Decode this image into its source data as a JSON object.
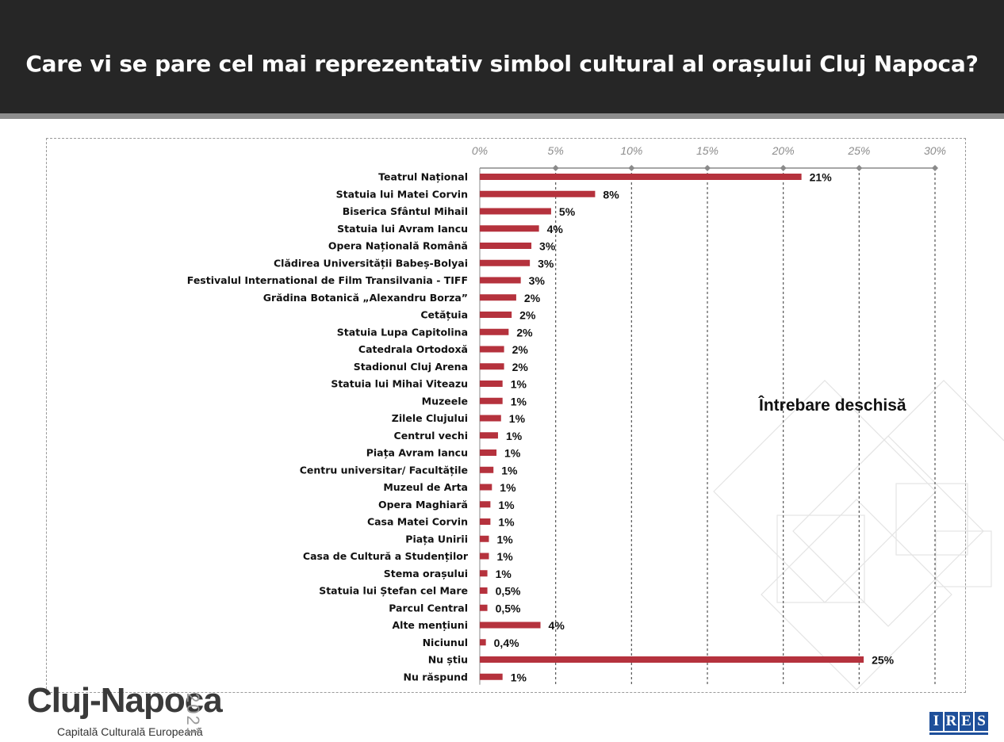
{
  "header": {
    "title": "Care vi se pare cel mai reprezentativ simbol cultural al orașului Cluj Napoca?"
  },
  "note": "Întrebare deschisă",
  "logo": {
    "name": "Cluj-Napoca",
    "subtitle": "Capitală Culturală Europeană",
    "year": "2021"
  },
  "brand": {
    "name": "IRES",
    "letters": [
      "I",
      "R",
      "E",
      "S"
    ]
  },
  "colors": {
    "bar": "#b5323d",
    "header_bg": "#262626",
    "brand": "#1e4f9a"
  },
  "chart_data": {
    "type": "bar",
    "orientation": "horizontal",
    "title": "Care vi se pare cel mai reprezentativ simbol cultural al orașului Cluj Napoca?",
    "xlim": [
      0,
      30
    ],
    "x_ticks": [
      "0%",
      "5%",
      "10%",
      "15%",
      "20%",
      "25%",
      "30%"
    ],
    "x_tick_values": [
      0,
      5,
      10,
      15,
      20,
      25,
      30
    ],
    "x_axis_position": "top",
    "grid": "vertical dashed",
    "categories": [
      "Teatrul Național",
      "Statuia lui Matei Corvin",
      "Biserica Sfântul Mihail",
      "Statuia lui Avram Iancu",
      "Opera Națională Română",
      "Clădirea Universității Babeș-Bolyai",
      "Festivalul International de Film Transilvania - TIFF",
      "Grădina Botanică „Alexandru Borza”",
      "Cetățuia",
      "Statuia Lupa Capitolina",
      "Catedrala Ortodoxă",
      "Stadionul Cluj Arena",
      "Statuia lui Mihai Viteazu",
      "Muzeele",
      "Zilele Clujului",
      "Centrul vechi",
      "Piața Avram Iancu",
      "Centru universitar/ Facultățile",
      "Muzeul de Arta",
      "Opera Maghiară",
      "Casa Matei Corvin",
      "Piața Unirii",
      "Casa de Cultură a Studenților",
      "Stema orașului",
      "Statuia lui Ștefan cel Mare",
      "Parcul Central",
      "Alte mențiuni",
      "Niciunul",
      "Nu știu",
      "Nu răspund"
    ],
    "values": [
      21.2,
      7.6,
      4.7,
      3.9,
      3.4,
      3.3,
      2.7,
      2.4,
      2.1,
      1.9,
      1.6,
      1.6,
      1.5,
      1.5,
      1.4,
      1.2,
      1.1,
      0.9,
      0.8,
      0.7,
      0.7,
      0.6,
      0.6,
      0.5,
      0.5,
      0.5,
      4.0,
      0.4,
      25.3,
      1.5
    ],
    "value_labels": [
      "21%",
      "8%",
      "5%",
      "4%",
      "3%",
      "3%",
      "3%",
      "2%",
      "2%",
      "2%",
      "2%",
      "2%",
      "1%",
      "1%",
      "1%",
      "1%",
      "1%",
      "1%",
      "1%",
      "1%",
      "1%",
      "1%",
      "1%",
      "1%",
      "0,5%",
      "0,5%",
      "4%",
      "0,4%",
      "25%",
      "1%"
    ]
  }
}
